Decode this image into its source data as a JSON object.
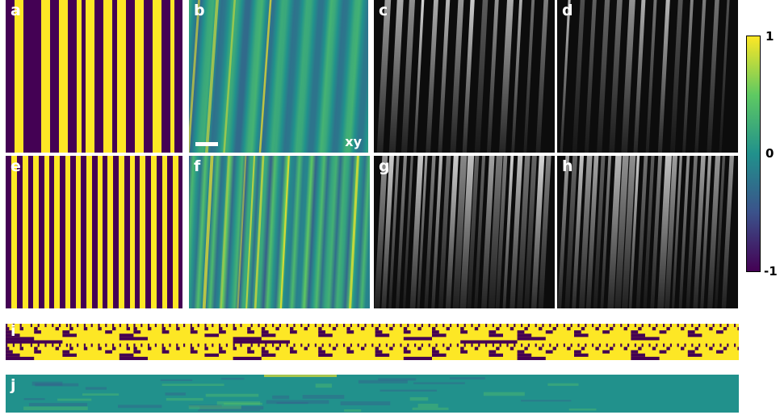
{
  "panels": {
    "a": {
      "label": "a"
    },
    "b": {
      "label": "b",
      "plane": "xy"
    },
    "c": {
      "label": "c"
    },
    "d": {
      "label": "d"
    },
    "e": {
      "label": "e"
    },
    "f": {
      "label": "f"
    },
    "g": {
      "label": "g"
    },
    "h": {
      "label": "h"
    },
    "i": {
      "label": "i"
    },
    "j": {
      "label": "j"
    }
  },
  "colorbar": {
    "max_label": "1",
    "mid_label": "0",
    "min_label": "-1",
    "colormap": "viridis",
    "colors": {
      "low": "#440154",
      "mid": "#21918c",
      "high": "#fde725"
    }
  },
  "colors": {
    "pattern_dark": "#440154",
    "pattern_bright": "#fde725",
    "background": "#ffffff"
  }
}
